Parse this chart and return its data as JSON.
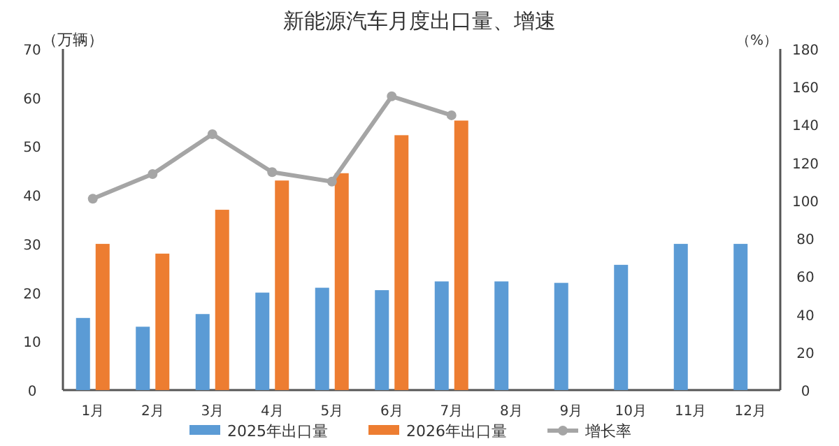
{
  "chart_data": {
    "type": "bar",
    "title": "新能源汽车月度出口量、增速",
    "ylabel": "（万辆）",
    "y2label": "（%）",
    "categories": [
      "1月",
      "2月",
      "3月",
      "4月",
      "5月",
      "6月",
      "7月",
      "8月",
      "9月",
      "10月",
      "11月",
      "12月"
    ],
    "series": [
      {
        "name": "2025年出口量",
        "color": "#5b9bd5",
        "values": [
          14.8,
          13,
          15.6,
          20,
          21,
          20.5,
          22.3,
          22.3,
          22,
          25.7,
          30,
          30
        ]
      },
      {
        "name": "2026年出口量",
        "color": "#ed7d31",
        "values": [
          30,
          28,
          37,
          43,
          44.5,
          52.3,
          55.3,
          null,
          null,
          null,
          null,
          null
        ]
      },
      {
        "name": "增长率",
        "type": "line",
        "axis": "y2",
        "color": "#a5a5a5",
        "values": [
          101,
          114,
          135,
          115,
          110,
          155,
          145,
          null,
          null,
          null,
          null,
          null
        ]
      }
    ],
    "ylim": [
      0,
      70
    ],
    "yticks": [
      0,
      10,
      20,
      30,
      40,
      50,
      60,
      70
    ],
    "y2lim": [
      0,
      180
    ],
    "y2ticks": [
      0,
      20,
      40,
      60,
      80,
      100,
      120,
      140,
      160,
      180
    ],
    "legend": "bottom",
    "marker": "circle"
  }
}
